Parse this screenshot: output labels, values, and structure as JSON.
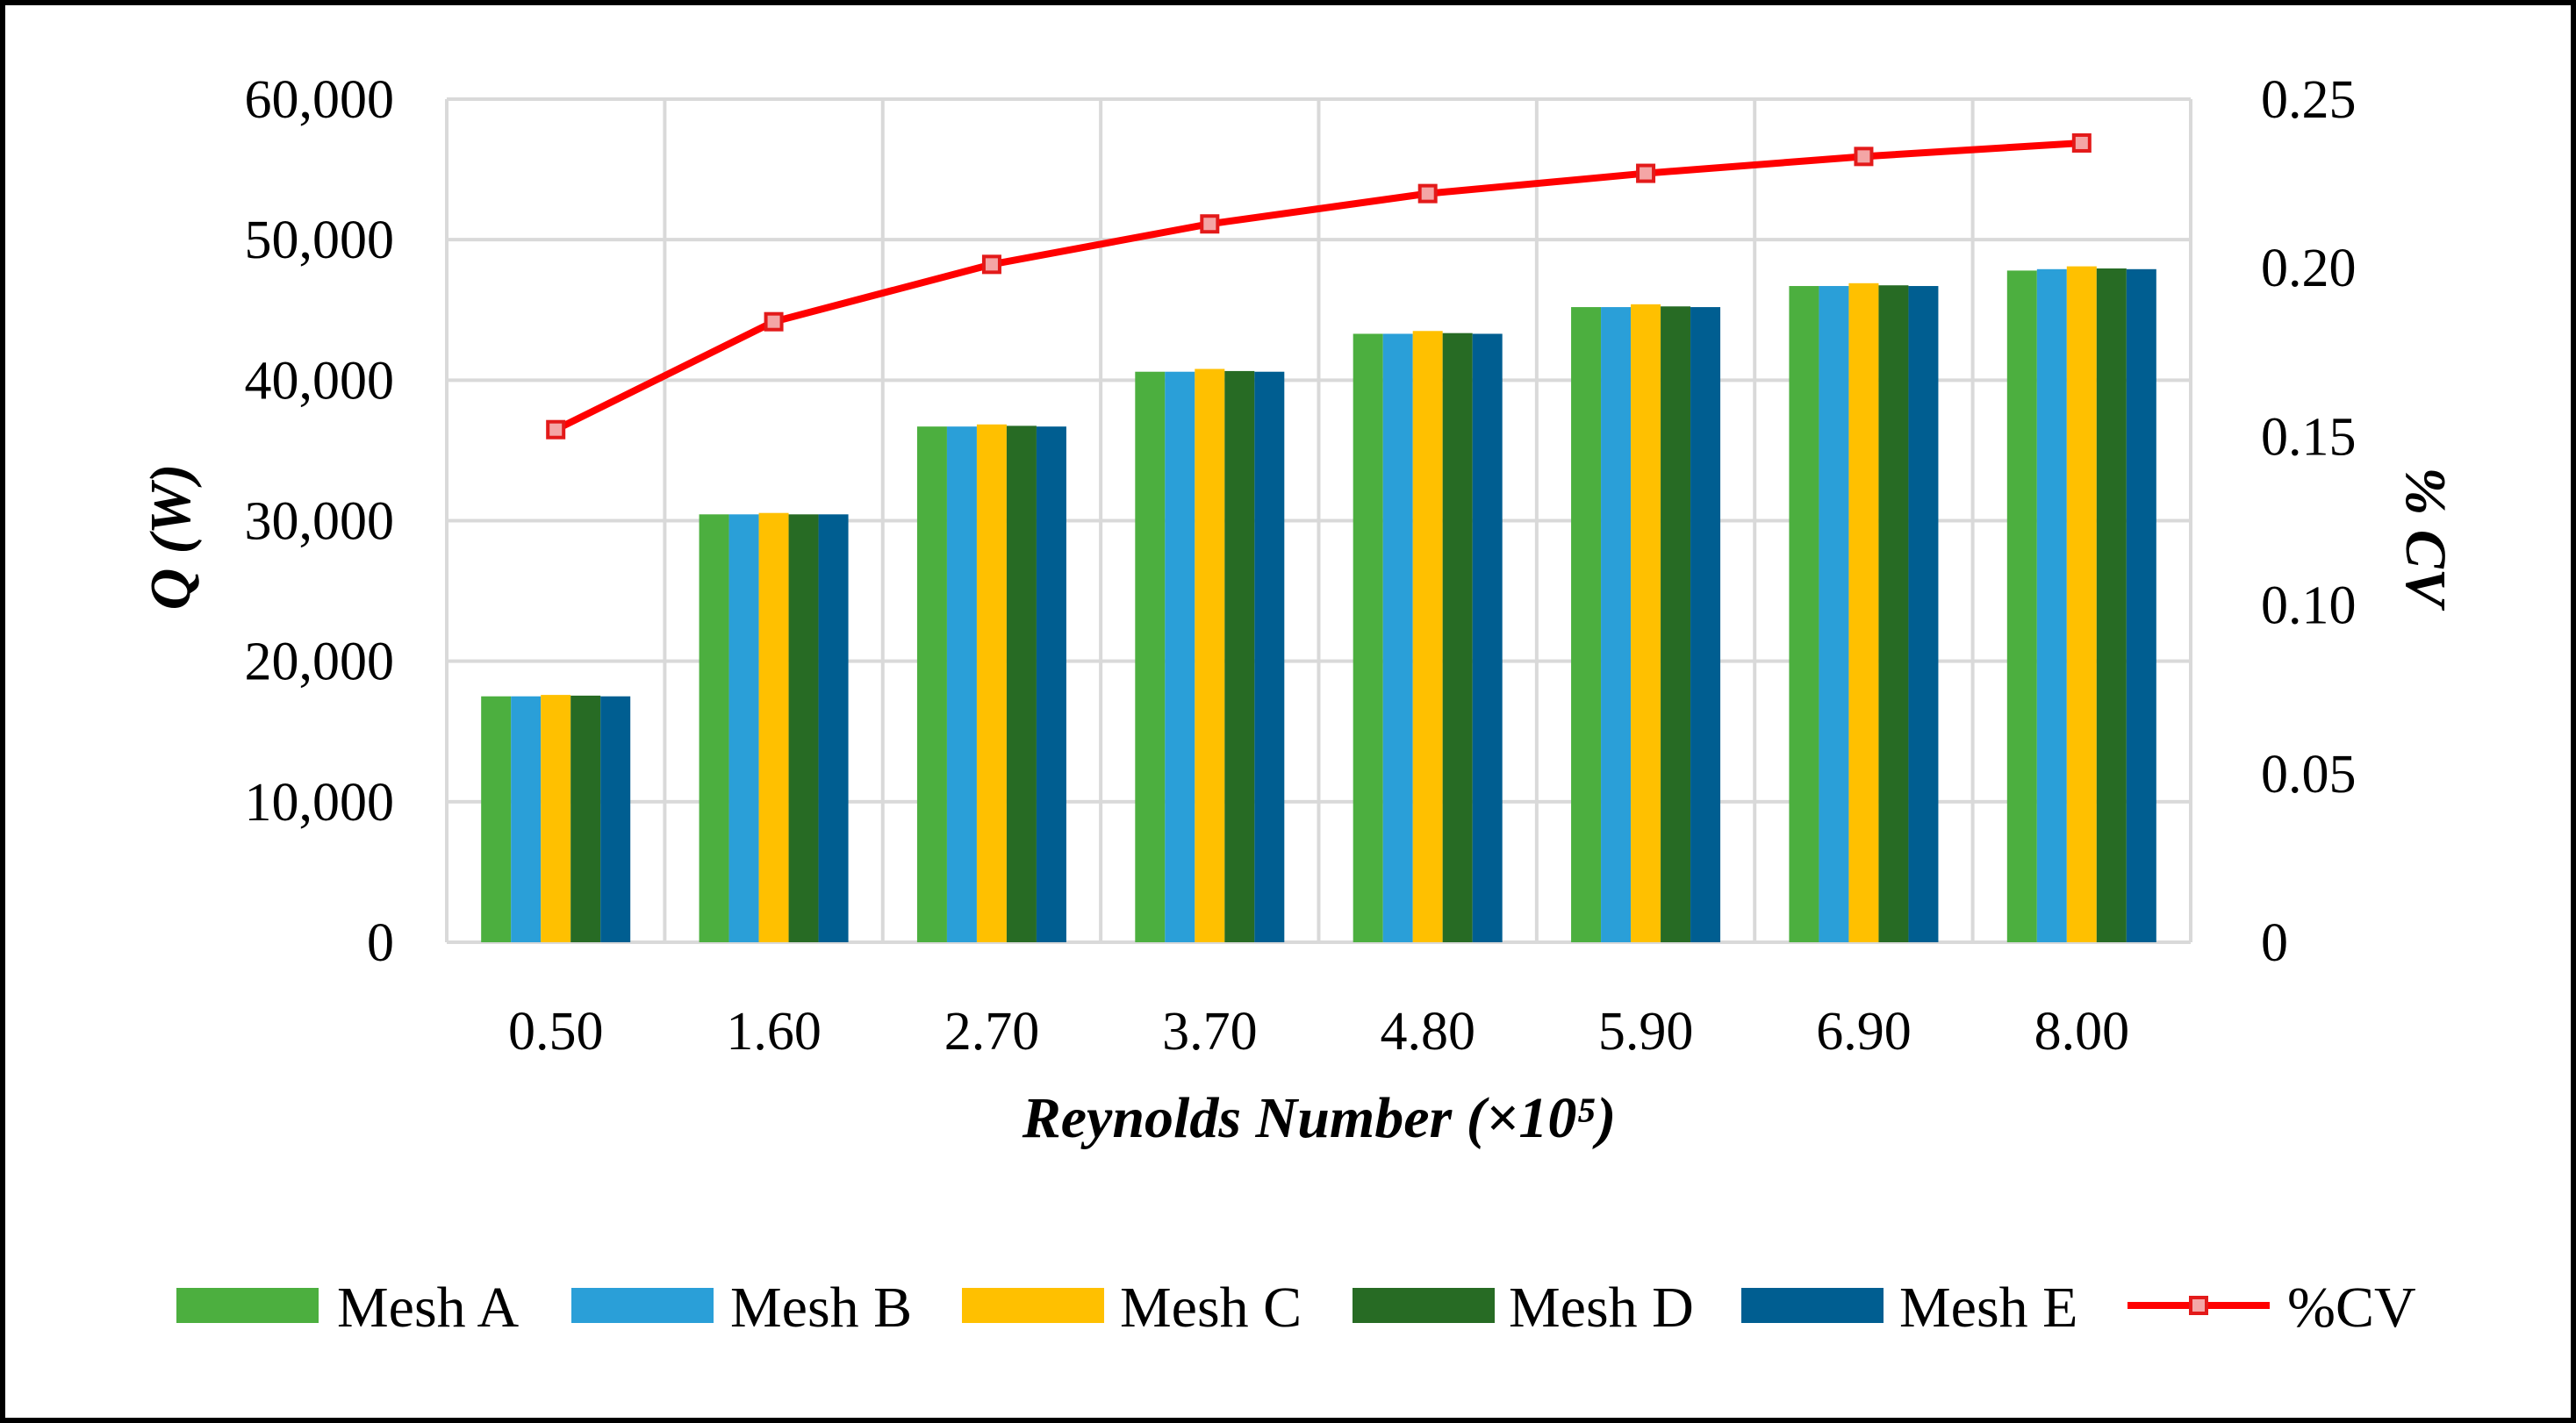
{
  "chart_data": {
    "type": "bar",
    "title": "",
    "xlabel": "Reynolds Number (×10⁵)",
    "ylabel": "Q (W)",
    "y2label": "% CV",
    "categories": [
      "0.50",
      "1.60",
      "2.70",
      "3.70",
      "4.80",
      "5.90",
      "6.90",
      "8.00"
    ],
    "ylim": [
      0,
      60000
    ],
    "y_ticks": [
      "0",
      "10,000",
      "20,000",
      "30,000",
      "40,000",
      "50,000",
      "60,000"
    ],
    "y_tick_values": [
      0,
      10000,
      20000,
      30000,
      40000,
      50000,
      60000
    ],
    "y2lim": [
      0,
      0.25
    ],
    "y2_ticks": [
      "0",
      "0.05",
      "0.10",
      "0.15",
      "0.20",
      "0.25"
    ],
    "y2_tick_values": [
      0,
      0.05,
      0.1,
      0.15,
      0.2,
      0.25
    ],
    "grid": true,
    "legend_position": "bottom",
    "series": [
      {
        "name": "Mesh A",
        "type": "bar",
        "color": "#4CAF3F",
        "values": [
          17500,
          30450,
          36700,
          40600,
          43300,
          45200,
          46700,
          47800
        ]
      },
      {
        "name": "Mesh B",
        "type": "bar",
        "color": "#2A9FD8",
        "values": [
          17500,
          30450,
          36700,
          40600,
          43300,
          45200,
          46700,
          47900
        ]
      },
      {
        "name": "Mesh C",
        "type": "bar",
        "color": "#FFC000",
        "values": [
          17600,
          30550,
          36850,
          40800,
          43500,
          45400,
          46900,
          48100
        ]
      },
      {
        "name": "Mesh D",
        "type": "bar",
        "color": "#276B24",
        "values": [
          17550,
          30450,
          36750,
          40650,
          43350,
          45250,
          46750,
          47950
        ]
      },
      {
        "name": "Mesh E",
        "type": "bar",
        "color": "#005E91",
        "values": [
          17500,
          30450,
          36700,
          40600,
          43300,
          45200,
          46700,
          47900
        ]
      },
      {
        "name": "%CV",
        "type": "line",
        "axis": "secondary",
        "color": "#FF0000",
        "values": [
          0.152,
          0.184,
          0.201,
          0.213,
          0.222,
          0.228,
          0.233,
          0.237
        ]
      }
    ]
  }
}
